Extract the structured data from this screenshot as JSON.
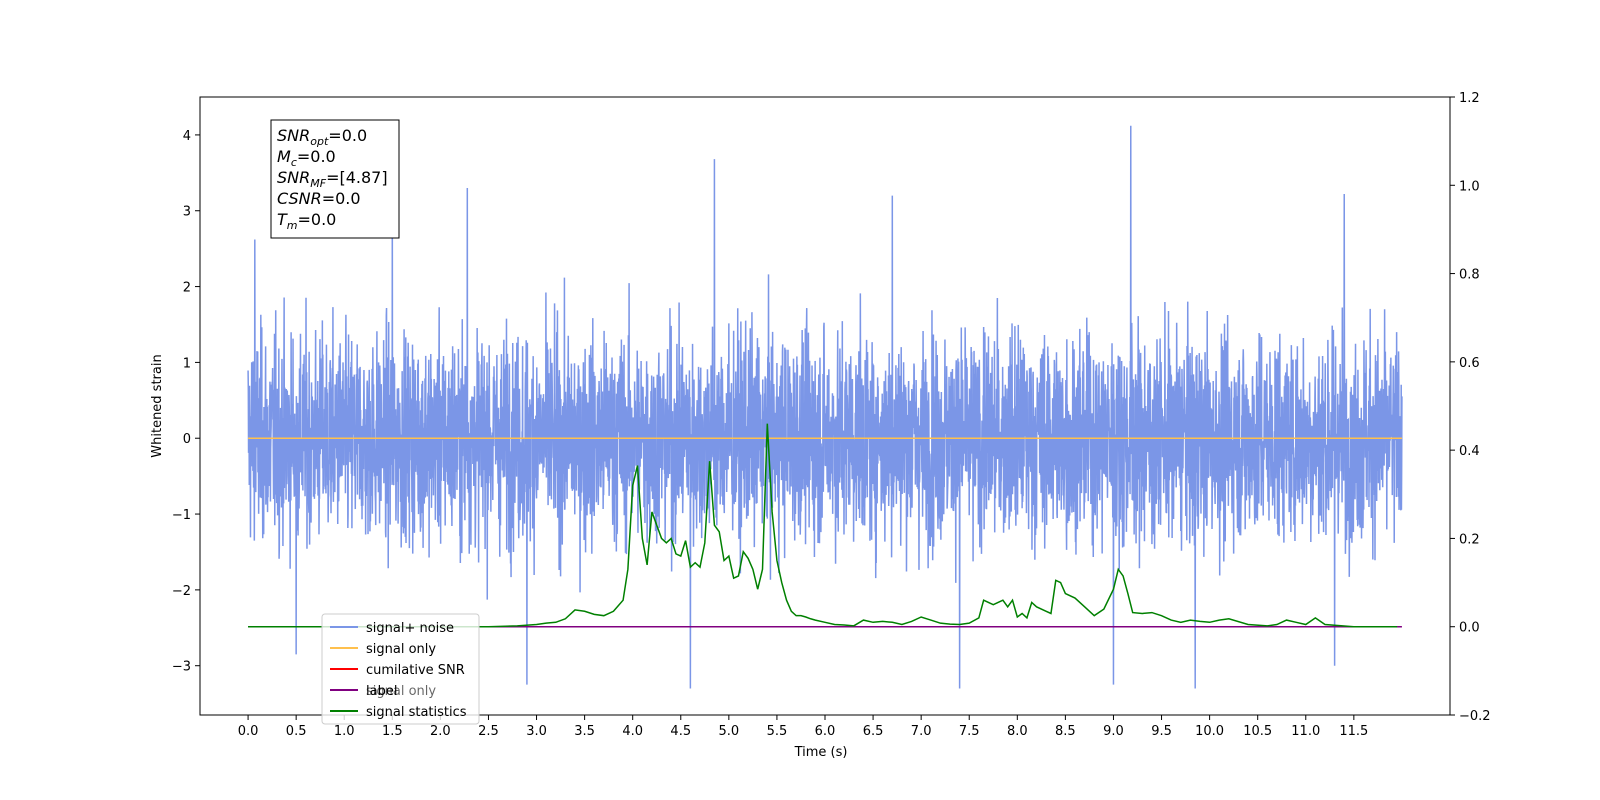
{
  "chart_data": {
    "type": "line",
    "xlabel": "Time (s)",
    "ylabel_left": "Whitened strain",
    "ylabel_right": "",
    "xlim": [
      -0.5,
      12.5
    ],
    "ylim_left": [
      -3.65,
      4.5
    ],
    "ylim_right": [
      -0.2,
      1.2
    ],
    "x_ticks": [
      "0.0",
      "0.5",
      "1.0",
      "1.5",
      "2.0",
      "2.5",
      "3.0",
      "3.5",
      "4.0",
      "4.5",
      "5.0",
      "5.5",
      "6.0",
      "6.5",
      "7.0",
      "7.5",
      "8.0",
      "8.5",
      "9.0",
      "9.5",
      "10.0",
      "10.5",
      "11.0",
      "11.5"
    ],
    "y_ticks_left": [
      "4",
      "3",
      "2",
      "1",
      "0",
      "−1",
      "−2",
      "−3"
    ],
    "y_ticks_right": [
      "1.2",
      "1.0",
      "0.8",
      "0.6",
      "0.4",
      "0.2",
      "0.0",
      "−0.2"
    ],
    "grid": false,
    "legend_position": "lower-left",
    "series": [
      {
        "name": "signal+ noise",
        "color": "#7b96e7",
        "axis": "left",
        "description_range": [
          -3.3,
          4.1
        ],
        "x_range": [
          0,
          12.0
        ],
        "peaks": [
          [
            0.07,
            2.62
          ],
          [
            1.5,
            3.07
          ],
          [
            2.28,
            3.3
          ],
          [
            4.85,
            3.68
          ],
          [
            9.18,
            4.12
          ],
          [
            11.4,
            3.22
          ],
          [
            6.7,
            3.2
          ]
        ],
        "troughs": [
          [
            0.5,
            -2.85
          ],
          [
            2.9,
            -3.25
          ],
          [
            4.6,
            -3.3
          ],
          [
            7.4,
            -3.3
          ],
          [
            9.0,
            -3.25
          ],
          [
            9.85,
            -3.3
          ],
          [
            11.3,
            -3.0
          ]
        ]
      },
      {
        "name": "signal only",
        "color": "#ffc04d",
        "axis": "left",
        "x": [
          0,
          12.0
        ],
        "y": [
          0,
          0
        ]
      },
      {
        "name": "cumilative SNR",
        "color": "#ff0000",
        "axis": "right",
        "x": [],
        "y": []
      },
      {
        "name": "label",
        "color": "#800080",
        "axis": "right",
        "x": [
          0,
          12.0
        ],
        "y": [
          0,
          0
        ]
      },
      {
        "name": "signal statistics",
        "color": "#008000",
        "axis": "right",
        "x": [
          0,
          2.5,
          2.8,
          3.0,
          3.1,
          3.2,
          3.3,
          3.4,
          3.5,
          3.6,
          3.7,
          3.8,
          3.9,
          3.95,
          4.0,
          4.05,
          4.1,
          4.15,
          4.2,
          4.3,
          4.35,
          4.4,
          4.45,
          4.5,
          4.55,
          4.6,
          4.65,
          4.7,
          4.75,
          4.8,
          4.85,
          4.9,
          4.95,
          5.0,
          5.05,
          5.1,
          5.15,
          5.2,
          5.25,
          5.3,
          5.35,
          5.4,
          5.45,
          5.5,
          5.55,
          5.6,
          5.65,
          5.7,
          5.75,
          5.8,
          5.85,
          5.9,
          6.0,
          6.1,
          6.2,
          6.3,
          6.4,
          6.5,
          6.6,
          6.7,
          6.8,
          6.9,
          7.0,
          7.1,
          7.2,
          7.3,
          7.4,
          7.5,
          7.6,
          7.65,
          7.7,
          7.75,
          7.8,
          7.85,
          7.9,
          7.95,
          8.0,
          8.05,
          8.1,
          8.15,
          8.2,
          8.3,
          8.35,
          8.4,
          8.45,
          8.5,
          8.6,
          8.7,
          8.8,
          8.9,
          9.0,
          9.05,
          9.1,
          9.15,
          9.2,
          9.3,
          9.4,
          9.5,
          9.6,
          9.7,
          9.8,
          9.9,
          10.0,
          10.1,
          10.2,
          10.4,
          10.6,
          10.7,
          10.8,
          10.9,
          11.0,
          11.1,
          11.2,
          11.5,
          11.95
        ],
        "y": [
          0,
          0.0,
          0.002,
          0.005,
          0.008,
          0.01,
          0.018,
          0.038,
          0.035,
          0.028,
          0.025,
          0.035,
          0.06,
          0.13,
          0.32,
          0.365,
          0.2,
          0.14,
          0.26,
          0.2,
          0.19,
          0.2,
          0.165,
          0.16,
          0.195,
          0.135,
          0.145,
          0.135,
          0.19,
          0.375,
          0.23,
          0.215,
          0.15,
          0.16,
          0.11,
          0.115,
          0.17,
          0.155,
          0.13,
          0.085,
          0.13,
          0.46,
          0.26,
          0.15,
          0.1,
          0.06,
          0.035,
          0.025,
          0.025,
          0.022,
          0.018,
          0.015,
          0.01,
          0.005,
          0.004,
          0.002,
          0.015,
          0.01,
          0.012,
          0.01,
          0.005,
          0.012,
          0.022,
          0.015,
          0.008,
          0.006,
          0.005,
          0.008,
          0.02,
          0.06,
          0.055,
          0.05,
          0.055,
          0.06,
          0.045,
          0.06,
          0.022,
          0.03,
          0.02,
          0.055,
          0.045,
          0.035,
          0.03,
          0.105,
          0.1,
          0.075,
          0.065,
          0.045,
          0.025,
          0.04,
          0.085,
          0.13,
          0.115,
          0.075,
          0.032,
          0.03,
          0.032,
          0.025,
          0.015,
          0.01,
          0.015,
          0.012,
          0.01,
          0.015,
          0.018,
          0.005,
          0.002,
          0.005,
          0.015,
          0.01,
          0.005,
          0.02,
          0.005,
          0.0,
          0.0
        ]
      }
    ],
    "annotation": {
      "lines": [
        {
          "var": "SNR",
          "sub": "opt",
          "value": "=0.0"
        },
        {
          "var": "M",
          "sub": "c",
          "value": "=0.0"
        },
        {
          "var": "SNR",
          "sub": "MF",
          "value": "=[4.87]"
        },
        {
          "var": "CSNR",
          "sub": "",
          "value": "=0.0"
        },
        {
          "var": "T",
          "sub": "m",
          "value": "=0.0"
        }
      ]
    },
    "legend": [
      "signal+ noise",
      "signal only",
      "cumilative SNR",
      "label",
      "signal statistics"
    ],
    "legend_hidden_text": "signal only"
  }
}
